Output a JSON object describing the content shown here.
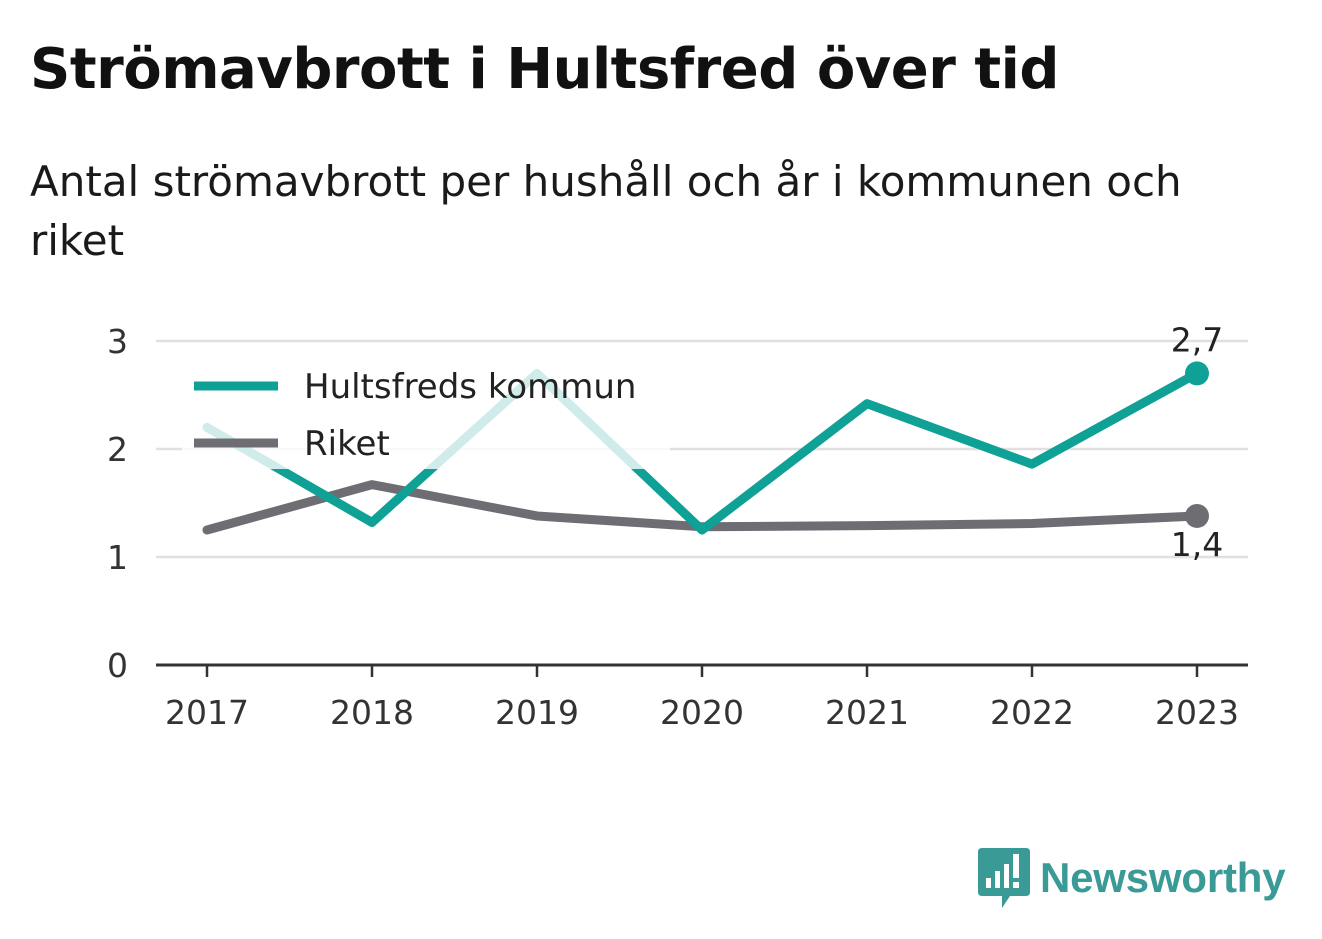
{
  "title": "Strömavbrott i Hultsfred över tid",
  "subtitle": "Antal strömavbrott per hushåll och år i kommunen och riket",
  "brand": {
    "name": "Newsworthy",
    "icon": "newsworthy-logo-icon",
    "color": "#3a9a96"
  },
  "colors": {
    "kommun": "#0fa196",
    "riket": "#6e6d73",
    "grid": "#e0e0e0",
    "axis": "#333333"
  },
  "chart_data": {
    "type": "line",
    "title": "Strömavbrott i Hultsfred över tid",
    "subtitle": "Antal strömavbrott per hushåll och år i kommunen och riket",
    "categories": [
      "2017",
      "2018",
      "2019",
      "2020",
      "2021",
      "2022",
      "2023"
    ],
    "ylim": [
      0,
      3
    ],
    "yticks": [
      "0",
      "1",
      "2",
      "3"
    ],
    "grid": true,
    "legend": "top-left",
    "series": [
      {
        "name": "Hultsfreds kommun",
        "values": [
          2.2,
          1.32,
          2.7,
          1.25,
          2.42,
          1.86,
          2.7
        ],
        "end_label": "2,7"
      },
      {
        "name": "Riket",
        "values": [
          1.25,
          1.67,
          1.38,
          1.28,
          1.29,
          1.31,
          1.38
        ],
        "end_label": "1,4"
      }
    ]
  }
}
